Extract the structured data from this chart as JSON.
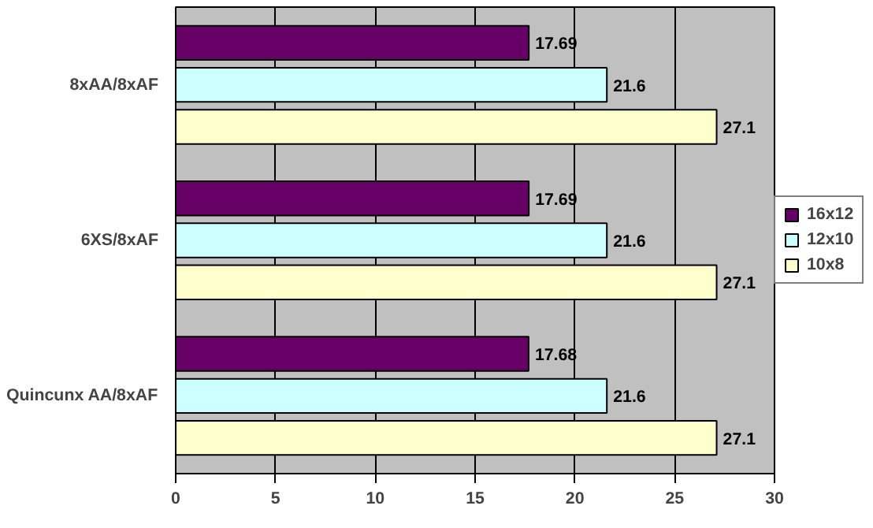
{
  "chart_data": {
    "type": "bar",
    "orientation": "horizontal",
    "categories": [
      "8xAA/8xAF",
      "6XS/8xAF",
      "Quincunx AA/8xAF"
    ],
    "series": [
      {
        "name": "16x12",
        "color": "#660066",
        "values": [
          17.69,
          17.69,
          17.68
        ]
      },
      {
        "name": "12x10",
        "color": "#ccffff",
        "values": [
          21.6,
          21.6,
          21.6
        ]
      },
      {
        "name": "10x8",
        "color": "#ffffcc",
        "values": [
          27.1,
          27.1,
          27.1
        ]
      }
    ],
    "xlim": [
      0,
      30
    ],
    "xticks": [
      0,
      5,
      10,
      15,
      20,
      25,
      30
    ],
    "grid": "x",
    "legend": "right",
    "data_labels": true
  }
}
